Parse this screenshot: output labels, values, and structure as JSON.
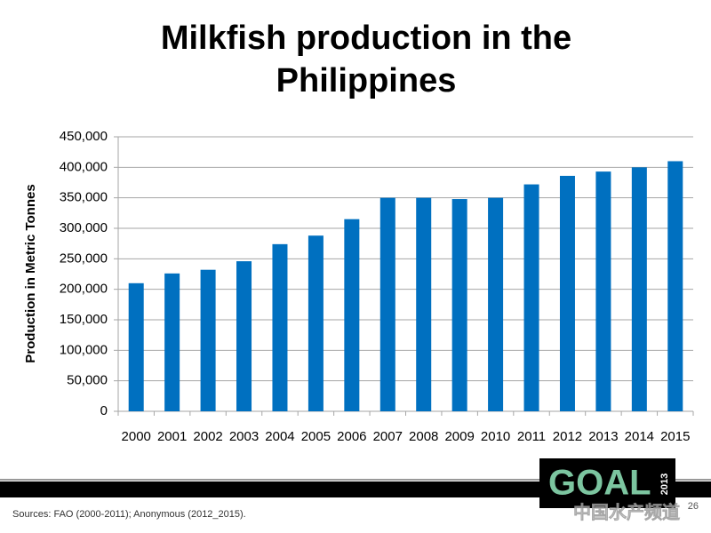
{
  "chart_data": {
    "type": "bar",
    "title": "Milkfish production in the Philippines",
    "y_label": "Production in Metric Tonnes",
    "categories": [
      "2000",
      "2001",
      "2002",
      "2003",
      "2004",
      "2005",
      "2006",
      "2007",
      "2008",
      "2009",
      "2010",
      "2011",
      "2012",
      "2013",
      "2014",
      "2015"
    ],
    "values": [
      210000,
      226000,
      232000,
      246000,
      274000,
      288000,
      315000,
      350000,
      350000,
      348000,
      350000,
      372000,
      386000,
      393000,
      400000,
      410000
    ],
    "color": "#0070c0",
    "ylim": [
      0,
      450000
    ],
    "yticks": [
      0,
      {
        "value": 50000,
        "label": "50,000"
      },
      {
        "value": 100000,
        "label": "100,000"
      },
      {
        "value": 150000,
        "label": "150,000"
      },
      {
        "value": 200000,
        "label": "200,000"
      },
      {
        "value": 250000,
        "label": "250,000"
      },
      {
        "value": 300000,
        "label": "300,000"
      },
      {
        "value": 350000,
        "label": "350,000"
      },
      {
        "value": 400000,
        "label": "400,000"
      },
      {
        "value": 450000,
        "label": "450,000"
      }
    ],
    "grid": true
  },
  "footer": {
    "sources": "Sources: FAO (2000-2011); Anonymous (2012_2015).",
    "page_number": "26",
    "logo": {
      "text": "GOAL",
      "year": "2013"
    },
    "watermark": "中国水产频道"
  }
}
